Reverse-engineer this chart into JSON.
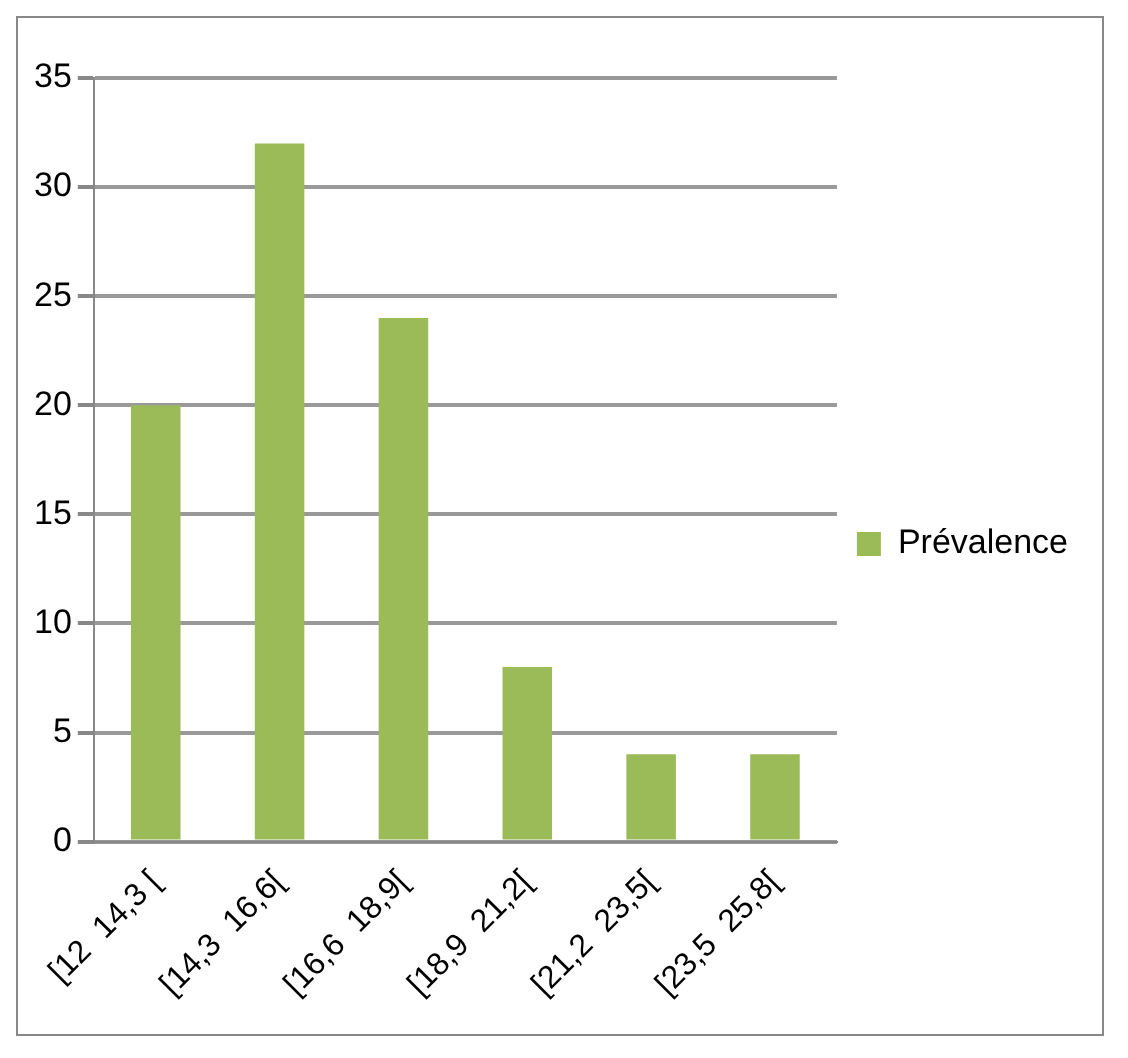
{
  "chart_data": {
    "type": "bar",
    "categories": [
      "[12  14,3 [",
      "[14,3  16,6[",
      "[16,6  18,9[",
      "[18,9  21,2[",
      "[21,2  23,5[",
      "[23,5  25,8["
    ],
    "series": [
      {
        "name": "Prévalence",
        "color": "#9bbb59",
        "values": [
          20,
          32,
          24,
          8,
          4,
          4
        ]
      }
    ],
    "ylim": [
      0,
      35
    ],
    "yticks": [
      0,
      5,
      10,
      15,
      20,
      25,
      30,
      35
    ],
    "grid": "y",
    "legend": "right"
  }
}
